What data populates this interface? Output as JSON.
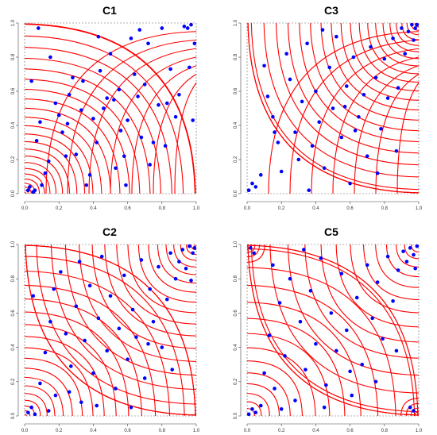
{
  "colors": {
    "contour": "#ff0000",
    "points": "#0000ff",
    "frame": "#666666"
  },
  "chart_data": [
    {
      "type": "scatter",
      "title": "C1",
      "xlim": [
        0,
        1
      ],
      "ylim": [
        0,
        1
      ],
      "xticks": [
        "0.0",
        "0.2",
        "0.4",
        "0.6",
        "0.8",
        "1.0"
      ],
      "yticks": [
        "0.0",
        "0.2",
        "0.4",
        "0.6",
        "0.8",
        "1.0"
      ],
      "overlay": "red contour lines of copula density",
      "points": [
        [
          0.04,
          0.66
        ],
        [
          0.05,
          0.01
        ],
        [
          0.03,
          0.04
        ],
        [
          0.02,
          0.02
        ],
        [
          0.06,
          0.02
        ],
        [
          0.08,
          0.97
        ],
        [
          0.12,
          0.12
        ],
        [
          0.14,
          0.19
        ],
        [
          0.18,
          0.53
        ],
        [
          0.2,
          0.46
        ],
        [
          0.22,
          0.36
        ],
        [
          0.25,
          0.41
        ],
        [
          0.28,
          0.68
        ],
        [
          0.3,
          0.23
        ],
        [
          0.34,
          0.66
        ],
        [
          0.36,
          0.05
        ],
        [
          0.4,
          0.44
        ],
        [
          0.42,
          0.3
        ],
        [
          0.44,
          0.72
        ],
        [
          0.46,
          0.5
        ],
        [
          0.48,
          0.56
        ],
        [
          0.5,
          0.82
        ],
        [
          0.52,
          0.55
        ],
        [
          0.55,
          0.61
        ],
        [
          0.58,
          0.22
        ],
        [
          0.6,
          0.43
        ],
        [
          0.62,
          0.91
        ],
        [
          0.64,
          0.7
        ],
        [
          0.66,
          0.57
        ],
        [
          0.68,
          0.33
        ],
        [
          0.7,
          0.64
        ],
        [
          0.72,
          0.88
        ],
        [
          0.75,
          0.3
        ],
        [
          0.78,
          0.52
        ],
        [
          0.8,
          0.97
        ],
        [
          0.82,
          0.28
        ],
        [
          0.85,
          0.73
        ],
        [
          0.88,
          0.45
        ],
        [
          0.9,
          0.58
        ],
        [
          0.93,
          0.98
        ],
        [
          0.95,
          0.97
        ],
        [
          0.97,
          0.99
        ],
        [
          0.96,
          0.74
        ],
        [
          0.98,
          0.43
        ],
        [
          0.99,
          0.88
        ],
        [
          0.15,
          0.8
        ],
        [
          0.26,
          0.58
        ],
        [
          0.33,
          0.49
        ],
        [
          0.38,
          0.11
        ],
        [
          0.56,
          0.37
        ],
        [
          0.59,
          0.05
        ],
        [
          0.73,
          0.17
        ],
        [
          0.83,
          0.53
        ],
        [
          0.67,
          0.96
        ],
        [
          0.43,
          0.92
        ],
        [
          0.1,
          0.05
        ],
        [
          0.07,
          0.31
        ],
        [
          0.09,
          0.42
        ],
        [
          0.24,
          0.22
        ],
        [
          0.53,
          0.15
        ]
      ]
    },
    {
      "type": "scatter",
      "title": "C3",
      "xlim": [
        0,
        1
      ],
      "ylim": [
        0,
        1
      ],
      "xticks": [
        "0.0",
        "0.2",
        "0.4",
        "0.6",
        "0.8",
        "1.0"
      ],
      "yticks": [
        "0.0",
        "0.2",
        "0.4",
        "0.6",
        "0.8",
        "1.0"
      ],
      "overlay": "red contour lines of copula density",
      "points": [
        [
          0.01,
          0.02
        ],
        [
          0.03,
          0.06
        ],
        [
          0.05,
          0.04
        ],
        [
          0.1,
          0.75
        ],
        [
          0.12,
          0.57
        ],
        [
          0.15,
          0.45
        ],
        [
          0.18,
          0.3
        ],
        [
          0.2,
          0.13
        ],
        [
          0.23,
          0.82
        ],
        [
          0.25,
          0.67
        ],
        [
          0.28,
          0.36
        ],
        [
          0.3,
          0.2
        ],
        [
          0.32,
          0.54
        ],
        [
          0.35,
          0.88
        ],
        [
          0.38,
          0.28
        ],
        [
          0.4,
          0.6
        ],
        [
          0.42,
          0.42
        ],
        [
          0.45,
          0.15
        ],
        [
          0.48,
          0.74
        ],
        [
          0.5,
          0.5
        ],
        [
          0.52,
          0.92
        ],
        [
          0.55,
          0.33
        ],
        [
          0.58,
          0.63
        ],
        [
          0.6,
          0.06
        ],
        [
          0.62,
          0.8
        ],
        [
          0.65,
          0.45
        ],
        [
          0.68,
          0.58
        ],
        [
          0.7,
          0.22
        ],
        [
          0.72,
          0.86
        ],
        [
          0.75,
          0.68
        ],
        [
          0.78,
          0.38
        ],
        [
          0.8,
          0.79
        ],
        [
          0.82,
          0.56
        ],
        [
          0.85,
          0.91
        ],
        [
          0.87,
          0.25
        ],
        [
          0.9,
          0.97
        ],
        [
          0.92,
          0.82
        ],
        [
          0.94,
          0.95
        ],
        [
          0.96,
          0.99
        ],
        [
          0.97,
          0.9
        ],
        [
          0.98,
          0.97
        ],
        [
          0.99,
          0.99
        ],
        [
          0.08,
          0.11
        ],
        [
          0.16,
          0.36
        ],
        [
          0.36,
          0.02
        ],
        [
          0.44,
          0.96
        ],
        [
          0.57,
          0.51
        ],
        [
          0.63,
          0.37
        ],
        [
          0.76,
          0.12
        ],
        [
          0.88,
          0.62
        ]
      ]
    },
    {
      "type": "scatter",
      "title": "C2",
      "xlim": [
        0,
        1
      ],
      "ylim": [
        0,
        1
      ],
      "xticks": [
        "0.0",
        "0.2",
        "0.4",
        "0.6",
        "0.8",
        "1.0"
      ],
      "yticks": [
        "0.0",
        "0.2",
        "0.4",
        "0.6",
        "0.8",
        "1.0"
      ],
      "overlay": "red contour lines of copula density",
      "points": [
        [
          0.02,
          0.02
        ],
        [
          0.04,
          0.05
        ],
        [
          0.06,
          0.01
        ],
        [
          0.05,
          0.7
        ],
        [
          0.09,
          0.19
        ],
        [
          0.12,
          0.37
        ],
        [
          0.15,
          0.55
        ],
        [
          0.18,
          0.12
        ],
        [
          0.21,
          0.84
        ],
        [
          0.24,
          0.48
        ],
        [
          0.27,
          0.29
        ],
        [
          0.3,
          0.64
        ],
        [
          0.33,
          0.08
        ],
        [
          0.35,
          0.44
        ],
        [
          0.38,
          0.76
        ],
        [
          0.4,
          0.25
        ],
        [
          0.43,
          0.57
        ],
        [
          0.45,
          0.93
        ],
        [
          0.48,
          0.38
        ],
        [
          0.5,
          0.7
        ],
        [
          0.53,
          0.16
        ],
        [
          0.55,
          0.51
        ],
        [
          0.58,
          0.82
        ],
        [
          0.6,
          0.33
        ],
        [
          0.63,
          0.62
        ],
        [
          0.65,
          0.46
        ],
        [
          0.68,
          0.91
        ],
        [
          0.7,
          0.22
        ],
        [
          0.73,
          0.74
        ],
        [
          0.75,
          0.55
        ],
        [
          0.78,
          0.87
        ],
        [
          0.8,
          0.4
        ],
        [
          0.83,
          0.68
        ],
        [
          0.85,
          0.95
        ],
        [
          0.88,
          0.8
        ],
        [
          0.9,
          0.9
        ],
        [
          0.92,
          0.97
        ],
        [
          0.94,
          0.86
        ],
        [
          0.96,
          0.99
        ],
        [
          0.98,
          0.95
        ],
        [
          0.97,
          0.79
        ],
        [
          0.99,
          0.98
        ],
        [
          0.14,
          0.03
        ],
        [
          0.26,
          0.14
        ],
        [
          0.42,
          0.06
        ],
        [
          0.62,
          0.05
        ],
        [
          0.86,
          0.27
        ],
        [
          0.72,
          0.42
        ],
        [
          0.17,
          0.74
        ],
        [
          0.32,
          0.9
        ]
      ]
    },
    {
      "type": "scatter",
      "title": "C5",
      "xlim": [
        0,
        1
      ],
      "ylim": [
        0,
        1
      ],
      "xticks": [
        "0.0",
        "0.2",
        "0.4",
        "0.6",
        "0.8",
        "1.0"
      ],
      "yticks": [
        "0.0",
        "0.2",
        "0.4",
        "0.6",
        "0.8",
        "1.0"
      ],
      "overlay": "red contour lines of copula density",
      "points": [
        [
          0.01,
          0.01
        ],
        [
          0.03,
          0.04
        ],
        [
          0.05,
          0.02
        ],
        [
          0.02,
          0.98
        ],
        [
          0.04,
          0.95
        ],
        [
          0.97,
          0.03
        ],
        [
          0.95,
          0.05
        ],
        [
          0.1,
          0.25
        ],
        [
          0.13,
          0.47
        ],
        [
          0.16,
          0.16
        ],
        [
          0.19,
          0.66
        ],
        [
          0.22,
          0.35
        ],
        [
          0.25,
          0.8
        ],
        [
          0.28,
          0.09
        ],
        [
          0.31,
          0.55
        ],
        [
          0.34,
          0.27
        ],
        [
          0.37,
          0.73
        ],
        [
          0.4,
          0.42
        ],
        [
          0.43,
          0.92
        ],
        [
          0.46,
          0.18
        ],
        [
          0.49,
          0.6
        ],
        [
          0.52,
          0.38
        ],
        [
          0.55,
          0.83
        ],
        [
          0.58,
          0.5
        ],
        [
          0.61,
          0.12
        ],
        [
          0.64,
          0.69
        ],
        [
          0.67,
          0.3
        ],
        [
          0.7,
          0.88
        ],
        [
          0.73,
          0.57
        ],
        [
          0.76,
          0.78
        ],
        [
          0.79,
          0.45
        ],
        [
          0.82,
          0.93
        ],
        [
          0.85,
          0.67
        ],
        [
          0.88,
          0.85
        ],
        [
          0.91,
          0.96
        ],
        [
          0.93,
          0.9
        ],
        [
          0.95,
          0.98
        ],
        [
          0.97,
          0.94
        ],
        [
          0.99,
          0.99
        ],
        [
          0.98,
          0.86
        ],
        [
          0.08,
          0.06
        ],
        [
          0.2,
          0.04
        ],
        [
          0.33,
          0.97
        ],
        [
          0.6,
          0.26
        ],
        [
          0.75,
          0.2
        ],
        [
          0.87,
          0.38
        ],
        [
          0.15,
          0.88
        ],
        [
          0.45,
          0.05
        ]
      ]
    }
  ]
}
